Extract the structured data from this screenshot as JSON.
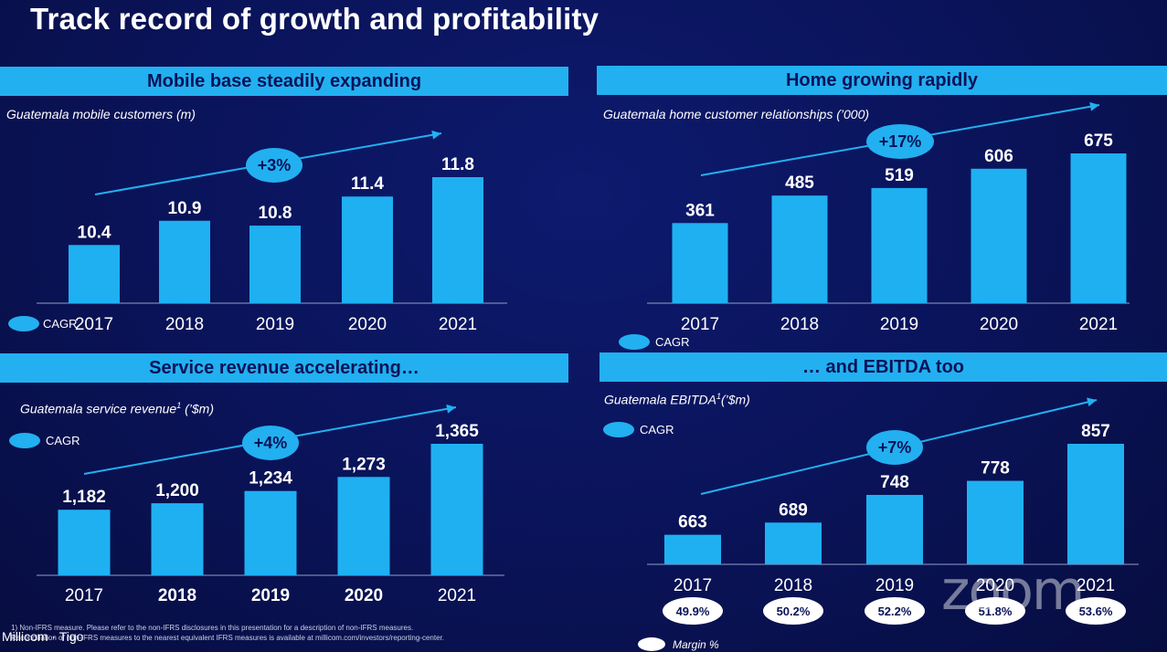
{
  "title": "Track record of growth and profitability",
  "cagr_label": "CAGR",
  "margin_label": "Margin %",
  "footnotes": {
    "line1": "1) Non-IFRS measure. Please refer to the non-IFRS disclosures in this presentation for a description of non-IFRS measures.",
    "line2": "Reconciliation of non-IFRS measures to the nearest equivalent IFRS measures is available at millicom.com/investors/reporting-center."
  },
  "brand": "Millicom · Tigo",
  "watermark": "zoom",
  "colors": {
    "bar": "#1fb0f2",
    "banner": "#22b0f0",
    "background": "#0a1358"
  },
  "chart_data": [
    {
      "type": "bar",
      "banner": "Mobile base steadily expanding",
      "subtitle": "Guatemala mobile customers (m)",
      "categories": [
        "2017",
        "2018",
        "2019",
        "2020",
        "2021"
      ],
      "values": [
        10.4,
        10.9,
        10.8,
        11.4,
        11.8
      ],
      "value_labels": [
        "10.4",
        "10.9",
        "10.8",
        "11.4",
        "11.8"
      ],
      "cagr": "+3%"
    },
    {
      "type": "bar",
      "banner": "Home growing rapidly",
      "subtitle": "Guatemala home customer relationships (’000)",
      "categories": [
        "2017",
        "2018",
        "2019",
        "2020",
        "2021"
      ],
      "values": [
        361,
        485,
        519,
        606,
        675
      ],
      "value_labels": [
        "361",
        "485",
        "519",
        "606",
        "675"
      ],
      "cagr": "+17%"
    },
    {
      "type": "bar",
      "banner": "Service revenue accelerating…",
      "subtitle": "Guatemala service revenue",
      "subtitle_sup": "1",
      "subtitle_suffix": " (’$m)",
      "categories": [
        "2017",
        "2018",
        "2019",
        "2020",
        "2021"
      ],
      "values": [
        1182,
        1200,
        1234,
        1273,
        1365
      ],
      "value_labels": [
        "1,182",
        "1,200",
        "1,234",
        "1,273",
        "1,365"
      ],
      "cagr": "+4%"
    },
    {
      "type": "bar",
      "banner": "… and EBITDA too",
      "subtitle": "Guatemala EBITDA",
      "subtitle_sup": "1",
      "subtitle_suffix": "(’$m)",
      "categories": [
        "2017",
        "2018",
        "2019",
        "2020",
        "2021"
      ],
      "values": [
        663,
        689,
        748,
        778,
        857
      ],
      "value_labels": [
        "663",
        "689",
        "748",
        "778",
        "857"
      ],
      "margins": [
        "49.9%",
        "50.2%",
        "52.2%",
        "51.8%",
        "53.6%"
      ],
      "cagr": "+7%"
    }
  ]
}
